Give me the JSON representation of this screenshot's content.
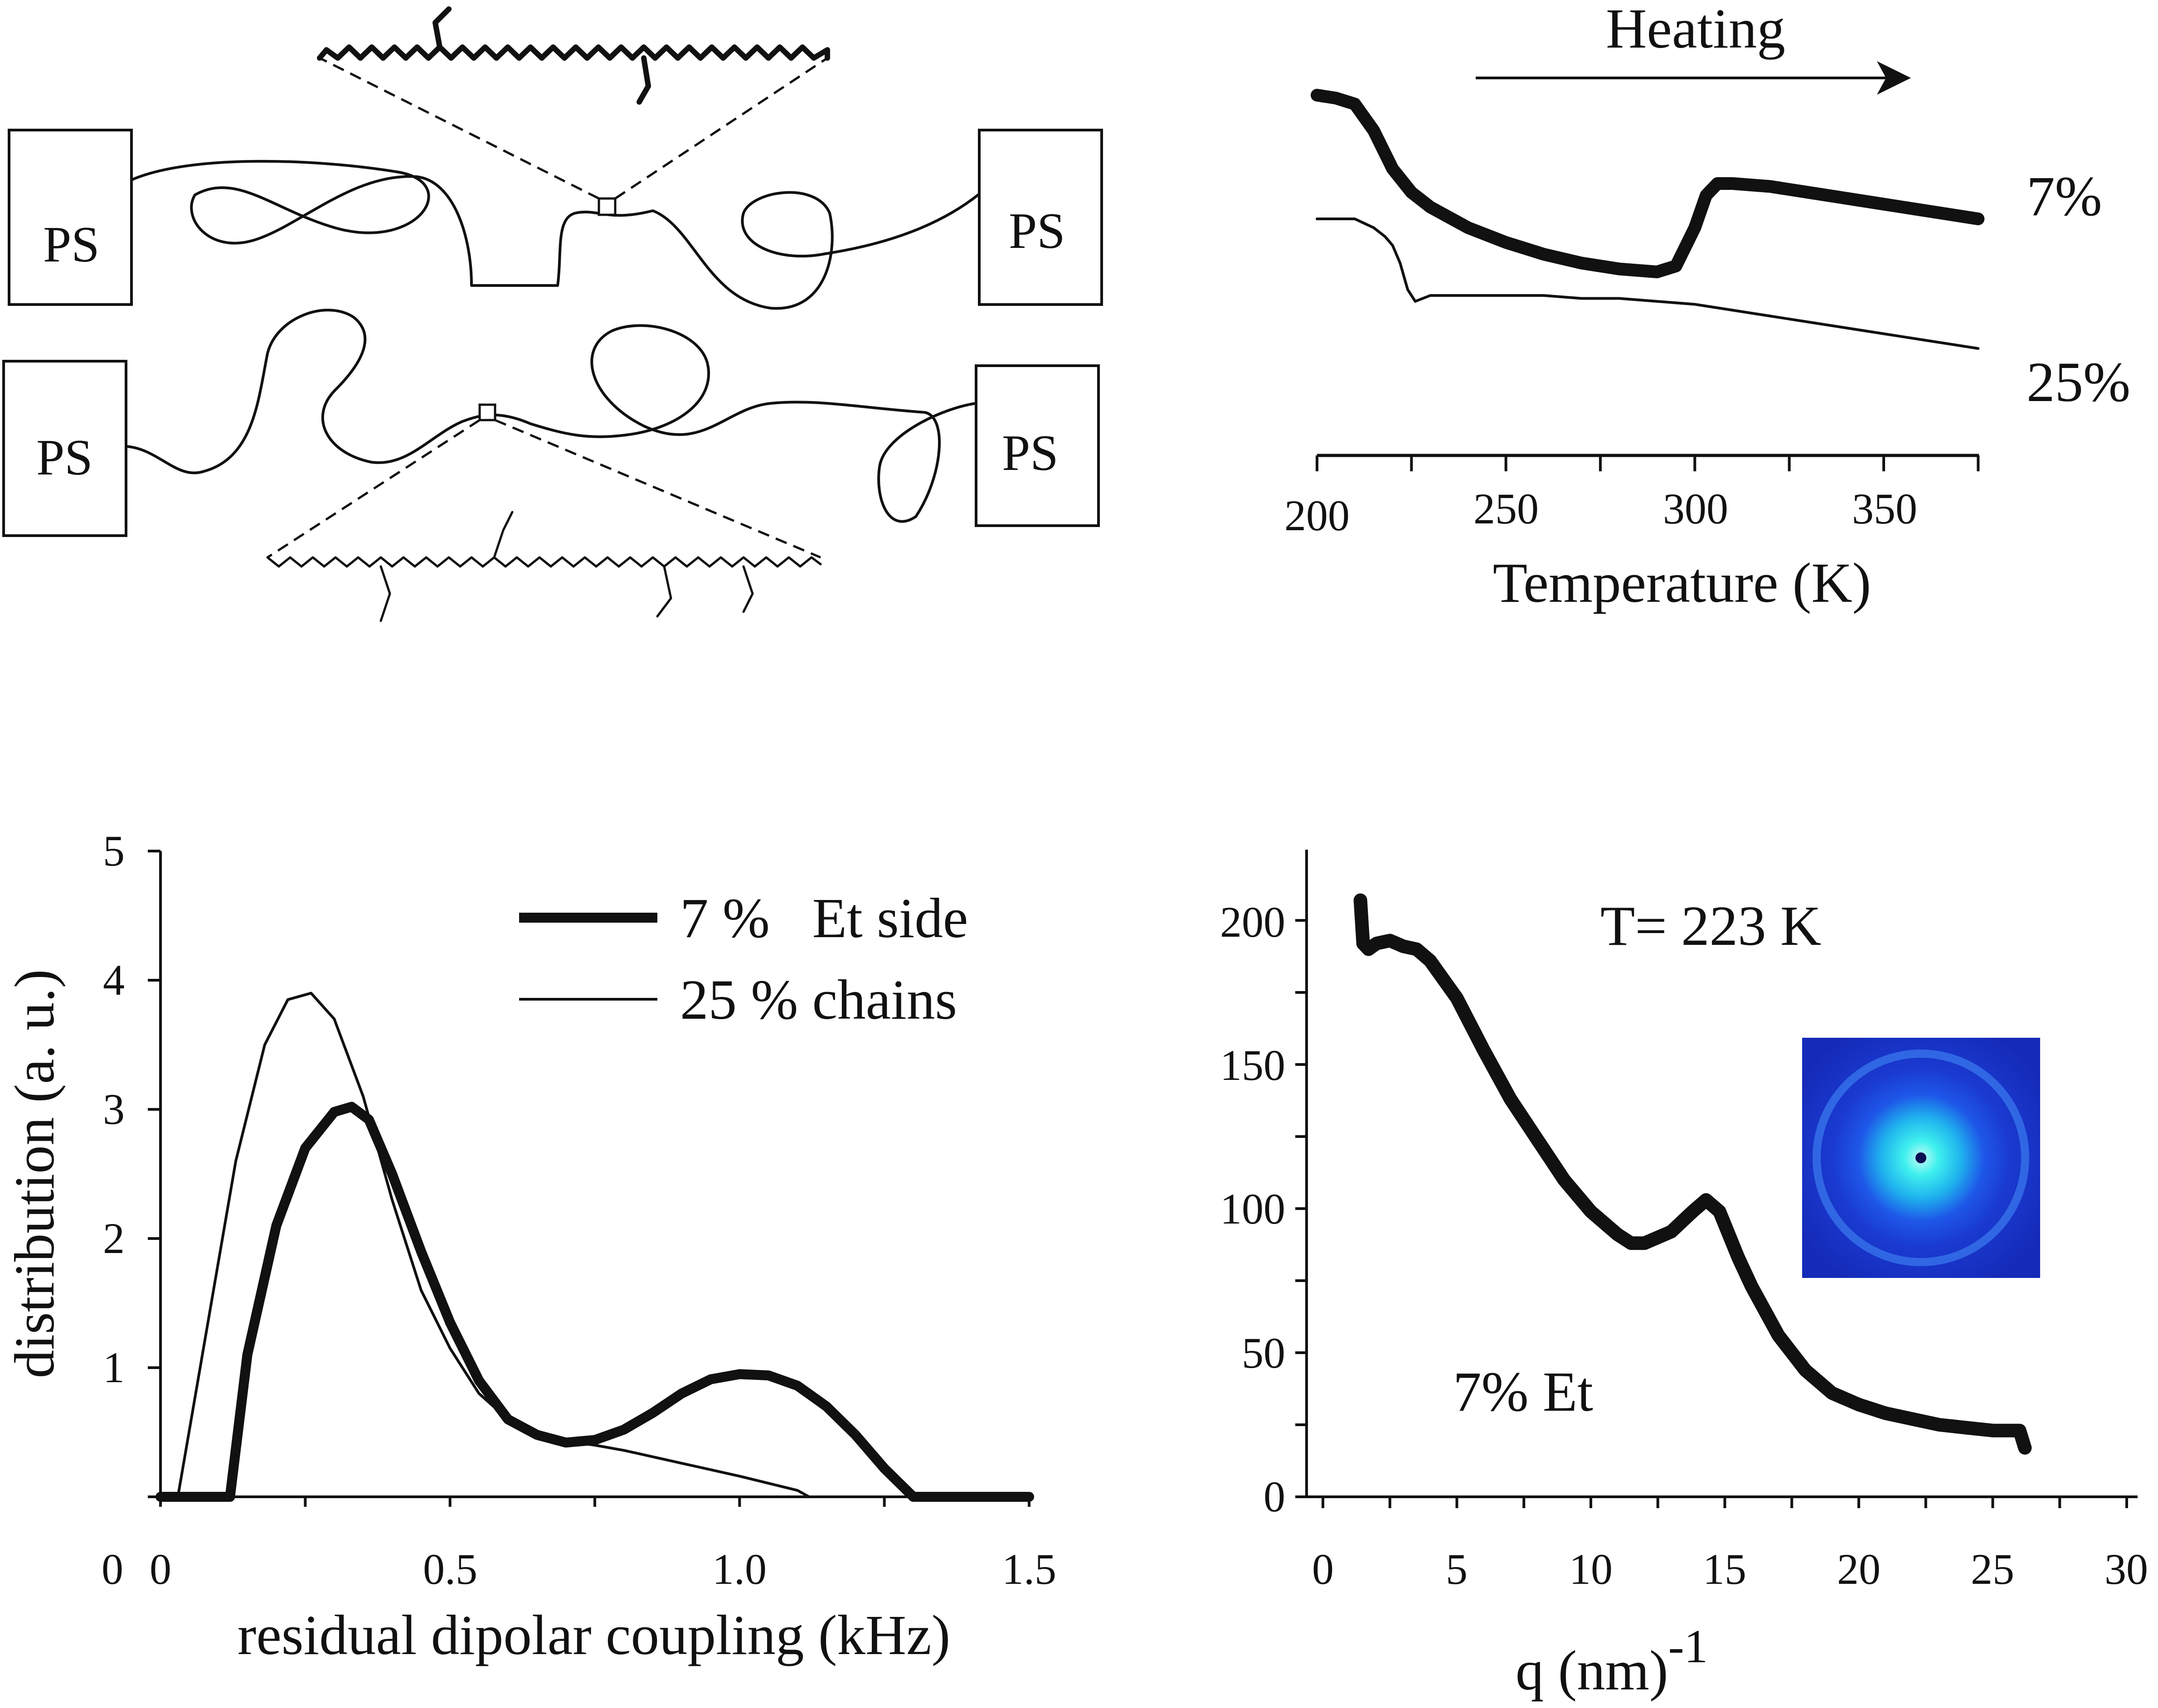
{
  "schematic": {
    "ps_labels": [
      "PS",
      "PS",
      "PS",
      "PS"
    ]
  },
  "chart_data": [
    {
      "type": "line",
      "title": "",
      "annotation": "Heating",
      "xlabel": "Temperature (K)",
      "ylabel": "",
      "xlim": [
        200,
        375
      ],
      "xticks": [
        "200",
        "250",
        "300",
        "350"
      ],
      "grid": false,
      "series": [
        {
          "name": "7%",
          "x": [
            200,
            205,
            210,
            215,
            220,
            225,
            230,
            240,
            250,
            260,
            270,
            280,
            290,
            295,
            300,
            303,
            306,
            310,
            320,
            330,
            340,
            350,
            360,
            370,
            375
          ],
          "y": [
            1.0,
            0.99,
            0.97,
            0.88,
            0.75,
            0.67,
            0.62,
            0.55,
            0.5,
            0.46,
            0.43,
            0.41,
            0.4,
            0.42,
            0.55,
            0.66,
            0.7,
            0.7,
            0.69,
            0.67,
            0.65,
            0.63,
            0.61,
            0.59,
            0.58
          ]
        },
        {
          "name": "25%",
          "x": [
            200,
            205,
            210,
            215,
            218,
            220,
            222,
            224,
            226,
            228,
            230,
            240,
            250,
            260,
            270,
            280,
            290,
            300,
            310,
            320,
            330,
            340,
            350,
            360,
            370,
            375
          ],
          "y": [
            0.58,
            0.58,
            0.58,
            0.55,
            0.52,
            0.49,
            0.43,
            0.34,
            0.3,
            0.31,
            0.32,
            0.32,
            0.32,
            0.32,
            0.31,
            0.31,
            0.3,
            0.29,
            0.27,
            0.25,
            0.23,
            0.21,
            0.19,
            0.17,
            0.15,
            0.14
          ]
        }
      ]
    },
    {
      "type": "line",
      "title": "",
      "xlabel": "residual dipolar coupling (kHz)",
      "ylabel": "distribution (a. u.)",
      "xlim": [
        0,
        1.5
      ],
      "ylim": [
        0,
        5
      ],
      "xticks": [
        "0",
        "0.5",
        "1.0",
        "1.5"
      ],
      "yticks": [
        "0",
        "1",
        "2",
        "3",
        "4",
        "5"
      ],
      "x_origin_label": "0",
      "legend_position": "top-right",
      "legend": [
        "7 %   Et side",
        "25 % chains"
      ],
      "grid": false,
      "series": [
        {
          "name": "7 %   Et side",
          "x": [
            0,
            0.12,
            0.15,
            0.2,
            0.25,
            0.3,
            0.33,
            0.36,
            0.4,
            0.45,
            0.5,
            0.55,
            0.6,
            0.65,
            0.7,
            0.75,
            0.8,
            0.85,
            0.9,
            0.95,
            1.0,
            1.05,
            1.1,
            1.15,
            1.2,
            1.25,
            1.3,
            1.4,
            1.5
          ],
          "y": [
            0,
            0,
            1.1,
            2.1,
            2.7,
            2.98,
            3.02,
            2.92,
            2.5,
            1.9,
            1.35,
            0.9,
            0.6,
            0.48,
            0.42,
            0.44,
            0.52,
            0.65,
            0.8,
            0.91,
            0.95,
            0.94,
            0.86,
            0.7,
            0.48,
            0.22,
            0,
            0,
            0
          ]
        },
        {
          "name": "25 % chains",
          "x": [
            0,
            0.03,
            0.08,
            0.13,
            0.18,
            0.22,
            0.26,
            0.3,
            0.35,
            0.4,
            0.45,
            0.5,
            0.55,
            0.6,
            0.65,
            0.7,
            0.75,
            0.8,
            0.9,
            1.0,
            1.1,
            1.12
          ],
          "y": [
            0,
            0,
            1.3,
            2.6,
            3.5,
            3.85,
            3.9,
            3.7,
            3.1,
            2.3,
            1.6,
            1.15,
            0.8,
            0.6,
            0.5,
            0.43,
            0.4,
            0.36,
            0.26,
            0.16,
            0.05,
            0
          ]
        }
      ]
    },
    {
      "type": "line",
      "title": "T= 223 K",
      "annotation": "7% Et",
      "inset": "2D scattering pattern",
      "xlabel": "q (nm)",
      "xlabel_superscript": "-1",
      "ylabel": "",
      "xlim": [
        -0.8,
        30
      ],
      "ylim": [
        0,
        225
      ],
      "xticks": [
        "0",
        "5",
        "10",
        "15",
        "20",
        "25",
        "30"
      ],
      "yticks": [
        "0",
        "50",
        "100",
        "150",
        "200"
      ],
      "grid": false,
      "series": [
        {
          "name": "7% Et",
          "x": [
            1.4,
            1.5,
            1.7,
            2,
            2.5,
            3,
            3.5,
            4,
            5,
            6,
            7,
            8,
            9,
            10,
            11,
            11.5,
            12,
            13,
            13.8,
            14.3,
            14.8,
            15.5,
            16,
            17,
            18,
            19,
            20,
            21,
            22,
            23,
            24,
            25,
            26,
            26.2
          ],
          "y": [
            207,
            192,
            190,
            192,
            193,
            191,
            190,
            186,
            173,
            155,
            138,
            124,
            110,
            99,
            91,
            88,
            88,
            92,
            99,
            103,
            99,
            83,
            73,
            56,
            44,
            36,
            32,
            29,
            27,
            25,
            24,
            23,
            23,
            17
          ]
        }
      ]
    }
  ]
}
